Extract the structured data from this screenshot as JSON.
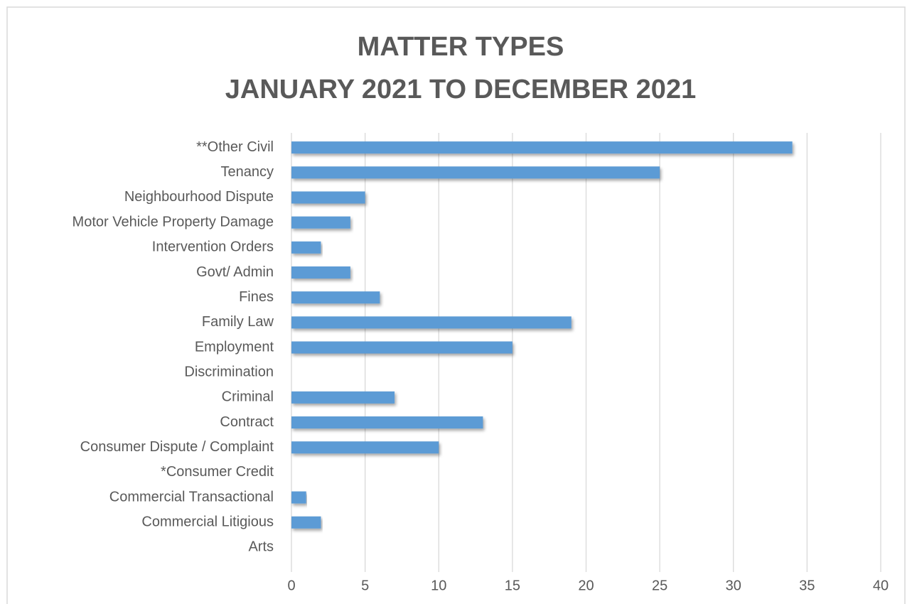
{
  "chart_data": {
    "type": "bar",
    "orientation": "horizontal",
    "title": "MATTER TYPES",
    "subtitle": "JANUARY 2021 TO DECEMBER 2021",
    "categories": [
      "**Other Civil",
      "Tenancy",
      "Neighbourhood Dispute",
      "Motor Vehicle Property Damage",
      "Intervention Orders",
      "Govt/ Admin",
      "Fines",
      "Family Law",
      "Employment",
      "Discrimination",
      "Criminal",
      "Contract",
      "Consumer Dispute / Complaint",
      "*Consumer Credit",
      "Commercial Transactional",
      "Commercial Litigious",
      "Arts"
    ],
    "values": [
      34,
      25,
      5,
      4,
      2,
      4,
      6,
      19,
      15,
      0,
      7,
      13,
      10,
      0,
      1,
      2,
      0
    ],
    "color": "#5b9bd5",
    "xlim": [
      0,
      40
    ],
    "xticks": [
      0,
      5,
      10,
      15,
      20,
      25,
      30,
      35,
      40
    ],
    "grid": true
  }
}
